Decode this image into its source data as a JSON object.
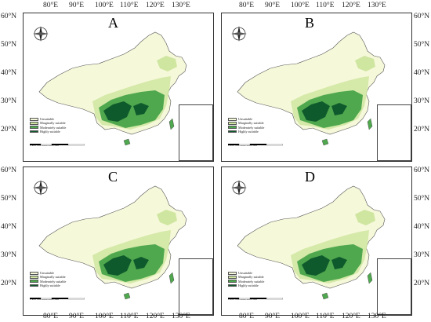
{
  "panels": [
    {
      "id": "A",
      "label": "A"
    },
    {
      "id": "B",
      "label": "B"
    },
    {
      "id": "C",
      "label": "C"
    },
    {
      "id": "D",
      "label": "D"
    }
  ],
  "axes": {
    "lon_ticks": [
      "80°E",
      "90°E",
      "100°E",
      "110°E",
      "120°E",
      "130°E"
    ],
    "lat_ticks": [
      "60°N",
      "50°N",
      "40°N",
      "30°N",
      "20°N"
    ]
  },
  "legend": {
    "items": [
      {
        "label": "Unsuitable",
        "color": "#f6f8da"
      },
      {
        "label": "Marginally suitable",
        "color": "#cfe6a0"
      },
      {
        "label": "Moderately suitable",
        "color": "#4fa84e"
      },
      {
        "label": "Highly suitable",
        "color": "#0f5a2c"
      }
    ]
  },
  "scale_bar": {
    "labels": [
      "0",
      "250",
      "500",
      "1000",
      "1500"
    ],
    "unit": "Km"
  },
  "compass": {
    "n": "N",
    "s": "S",
    "e": "E",
    "w": "W"
  },
  "colors": {
    "unsuitable": "#f6f8da",
    "marginal": "#cfe6a0",
    "moderate": "#4fa84e",
    "high": "#0f5a2c",
    "border": "#333333"
  }
}
